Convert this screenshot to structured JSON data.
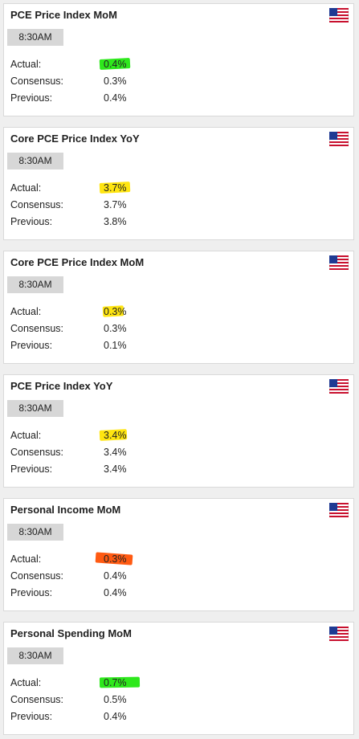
{
  "labels": {
    "actual": "Actual:",
    "consensus": "Consensus:",
    "previous": "Previous:"
  },
  "colors": {
    "better": "#2ee81c",
    "in_line": "#ffe510",
    "worse": "#ff5a12"
  },
  "flag_icon": "us-flag-icon",
  "events": [
    {
      "title": "PCE Price Index MoM",
      "time": "8:30AM",
      "actual": "0.4%",
      "consensus": "0.3%",
      "previous": "0.4%",
      "highlight": "better"
    },
    {
      "title": "Core PCE Price Index YoY",
      "time": "8:30AM",
      "actual": "3.7%",
      "consensus": "3.7%",
      "previous": "3.8%",
      "highlight": "in_line"
    },
    {
      "title": "Core PCE Price Index MoM",
      "time": "8:30AM",
      "actual": "0.3%",
      "consensus": "0.3%",
      "previous": "0.1%",
      "highlight": "in_line"
    },
    {
      "title": "PCE Price Index YoY",
      "time": "8:30AM",
      "actual": "3.4%",
      "consensus": "3.4%",
      "previous": "3.4%",
      "highlight": "in_line"
    },
    {
      "title": "Personal Income MoM",
      "time": "8:30AM",
      "actual": "0.3%",
      "consensus": "0.4%",
      "previous": "0.4%",
      "highlight": "worse"
    },
    {
      "title": "Personal Spending MoM",
      "time": "8:30AM",
      "actual": "0.7%",
      "consensus": "0.5%",
      "previous": "0.4%",
      "highlight": "better"
    }
  ]
}
